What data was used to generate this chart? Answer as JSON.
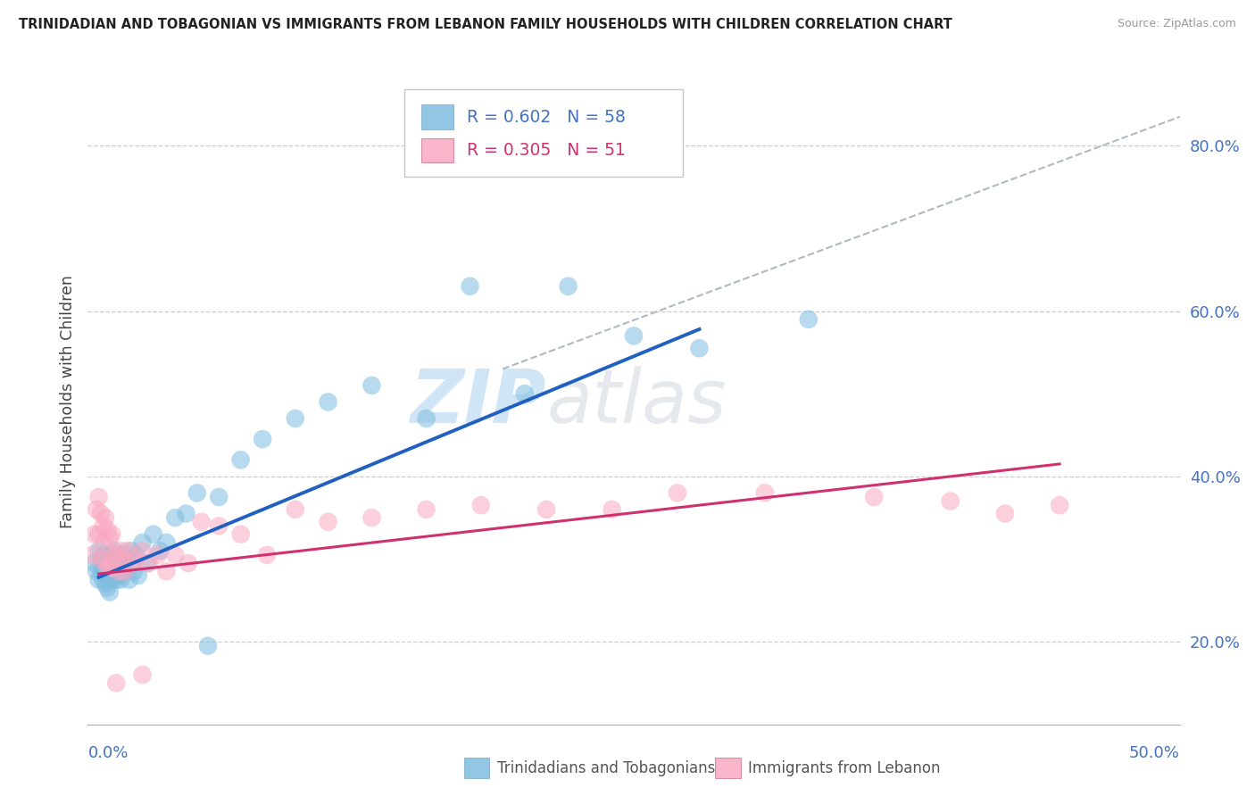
{
  "title": "TRINIDADIAN AND TOBAGONIAN VS IMMIGRANTS FROM LEBANON FAMILY HOUSEHOLDS WITH CHILDREN CORRELATION CHART",
  "source": "Source: ZipAtlas.com",
  "ylabel": "Family Households with Children",
  "yticks": [
    0.2,
    0.4,
    0.6,
    0.8
  ],
  "ytick_labels": [
    "20.0%",
    "40.0%",
    "60.0%",
    "80.0%"
  ],
  "xlim": [
    0.0,
    0.5
  ],
  "ylim": [
    0.1,
    0.88
  ],
  "legend_r1": "R = 0.602",
  "legend_n1": "N = 58",
  "legend_r2": "R = 0.305",
  "legend_n2": "N = 51",
  "color_blue": "#7fbde0",
  "color_pink": "#f9a8c0",
  "color_blue_line": "#2060c0",
  "color_pink_line": "#d03070",
  "color_dashed": "#b0b8c0",
  "watermark_zip": "ZIP",
  "watermark_atlas": "atlas",
  "blue_x": [
    0.003,
    0.004,
    0.005,
    0.005,
    0.006,
    0.006,
    0.007,
    0.007,
    0.007,
    0.008,
    0.008,
    0.008,
    0.009,
    0.009,
    0.009,
    0.01,
    0.01,
    0.01,
    0.011,
    0.011,
    0.012,
    0.012,
    0.013,
    0.013,
    0.014,
    0.014,
    0.015,
    0.015,
    0.016,
    0.017,
    0.018,
    0.019,
    0.02,
    0.021,
    0.022,
    0.023,
    0.025,
    0.027,
    0.03,
    0.033,
    0.036,
    0.04,
    0.045,
    0.05,
    0.055,
    0.06,
    0.07,
    0.08,
    0.095,
    0.11,
    0.13,
    0.155,
    0.175,
    0.2,
    0.22,
    0.25,
    0.28,
    0.33
  ],
  "blue_y": [
    0.295,
    0.285,
    0.31,
    0.275,
    0.3,
    0.285,
    0.305,
    0.29,
    0.275,
    0.3,
    0.285,
    0.27,
    0.295,
    0.28,
    0.265,
    0.3,
    0.28,
    0.26,
    0.305,
    0.275,
    0.31,
    0.28,
    0.295,
    0.275,
    0.3,
    0.28,
    0.295,
    0.275,
    0.305,
    0.285,
    0.3,
    0.275,
    0.31,
    0.285,
    0.305,
    0.28,
    0.32,
    0.295,
    0.33,
    0.31,
    0.32,
    0.35,
    0.355,
    0.38,
    0.195,
    0.375,
    0.42,
    0.445,
    0.47,
    0.49,
    0.51,
    0.47,
    0.63,
    0.5,
    0.63,
    0.57,
    0.555,
    0.59
  ],
  "pink_x": [
    0.002,
    0.003,
    0.004,
    0.005,
    0.005,
    0.006,
    0.006,
    0.007,
    0.007,
    0.008,
    0.008,
    0.009,
    0.009,
    0.01,
    0.01,
    0.011,
    0.011,
    0.012,
    0.013,
    0.014,
    0.015,
    0.016,
    0.017,
    0.018,
    0.02,
    0.022,
    0.025,
    0.028,
    0.032,
    0.036,
    0.04,
    0.046,
    0.052,
    0.06,
    0.07,
    0.082,
    0.095,
    0.11,
    0.13,
    0.155,
    0.18,
    0.21,
    0.24,
    0.27,
    0.31,
    0.36,
    0.395,
    0.42,
    0.445,
    0.025,
    0.013
  ],
  "pink_y": [
    0.305,
    0.33,
    0.36,
    0.375,
    0.33,
    0.355,
    0.3,
    0.34,
    0.32,
    0.35,
    0.3,
    0.335,
    0.29,
    0.325,
    0.29,
    0.33,
    0.29,
    0.305,
    0.305,
    0.285,
    0.31,
    0.3,
    0.285,
    0.31,
    0.295,
    0.3,
    0.31,
    0.295,
    0.305,
    0.285,
    0.305,
    0.295,
    0.345,
    0.34,
    0.33,
    0.305,
    0.36,
    0.345,
    0.35,
    0.36,
    0.365,
    0.36,
    0.36,
    0.38,
    0.38,
    0.375,
    0.37,
    0.355,
    0.365,
    0.16,
    0.15
  ],
  "blue_line_x": [
    0.005,
    0.28
  ],
  "blue_line_y": [
    0.278,
    0.578
  ],
  "pink_line_x": [
    0.005,
    0.445
  ],
  "pink_line_y": [
    0.282,
    0.415
  ],
  "dashed_line_x": [
    0.19,
    0.5
  ],
  "dashed_line_y": [
    0.53,
    0.835
  ]
}
